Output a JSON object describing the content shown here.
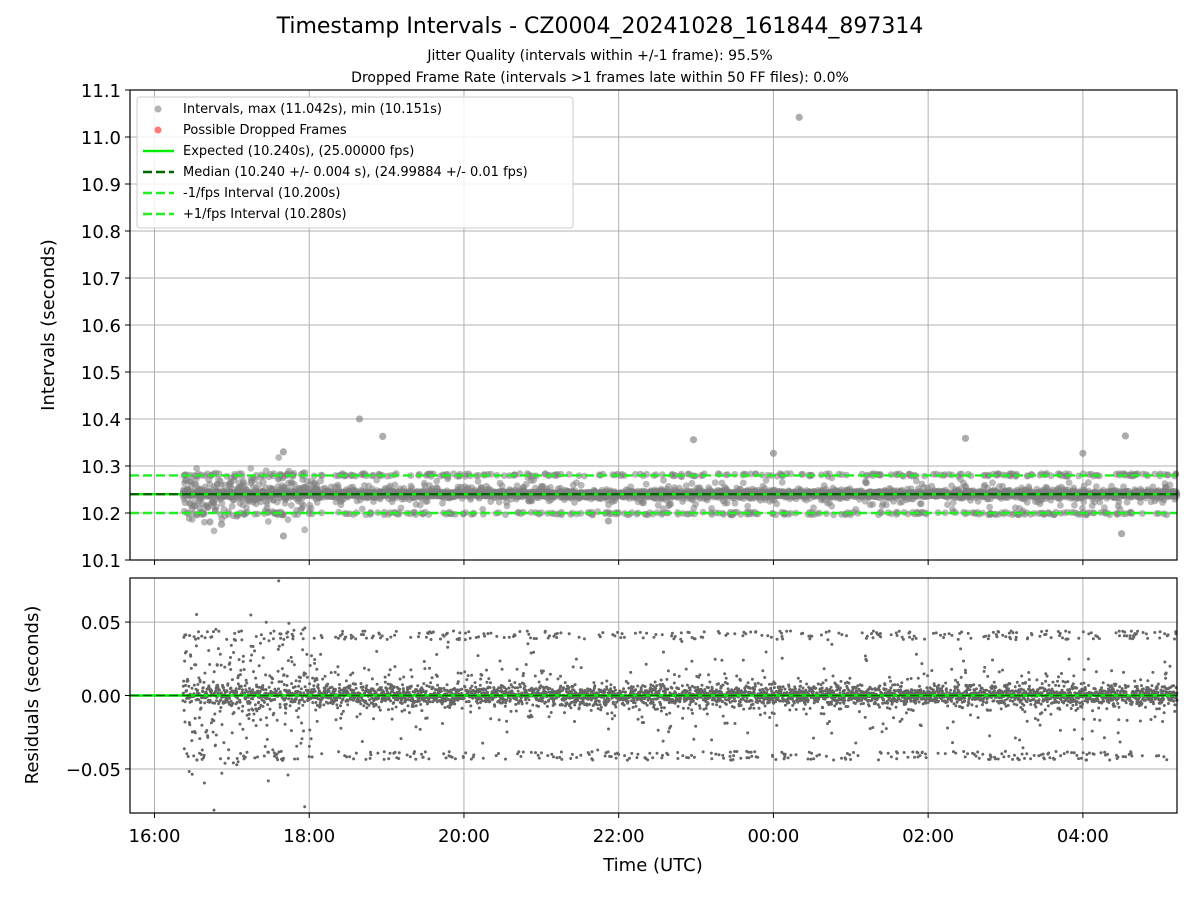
{
  "title": "Timestamp Intervals - CZ0004_20241028_161844_897314",
  "subtitle_jitter": "Jitter Quality (intervals within +/-1 frame): 95.5%",
  "subtitle_dropped": "Dropped Frame Rate (intervals >1 frames late within 50 FF files): 0.0%",
  "colors": {
    "points": "#808080",
    "dropped": "#ff4040",
    "expected": "#00ee00",
    "median": "#006400",
    "fps_bounds": "#22ee22",
    "grid": "#b0b0b0"
  },
  "chart_data": [
    {
      "type": "scatter",
      "panel": "top",
      "xlabel": "",
      "ylabel": "Intervals (seconds)",
      "xlim": [
        "15:41",
        "05:13"
      ],
      "ylim": [
        10.1,
        11.1
      ],
      "y_ticks": [
        "10.1",
        "10.2",
        "10.3",
        "10.4",
        "10.5",
        "10.6",
        "10.7",
        "10.8",
        "10.9",
        "11.0",
        "11.1"
      ],
      "x_ticks": [
        "16:00",
        "18:00",
        "20:00",
        "22:00",
        "00:00",
        "02:00",
        "04:00"
      ],
      "grid": true,
      "legend_position": "top-left",
      "series": [
        {
          "name": "Intervals, max (11.042s), min (10.151s)",
          "kind": "scatter",
          "color": "#808080"
        },
        {
          "name": "Possible Dropped Frames",
          "kind": "scatter",
          "color": "#ff4040",
          "count": 0
        },
        {
          "name": "Expected (10.240s), (25.00000 fps)",
          "kind": "hline",
          "y": 10.24,
          "style": "solid",
          "color": "#00ee00"
        },
        {
          "name": "Median (10.240 +/- 0.004 s), (24.99884 +/- 0.01 fps)",
          "kind": "hline",
          "y": 10.24,
          "style": "dashed",
          "color": "#006400"
        },
        {
          "name": "-1/fps Interval (10.200s)",
          "kind": "hline",
          "y": 10.2,
          "style": "dashed",
          "color": "#22ee22"
        },
        {
          "name": "+1/fps Interval (10.280s)",
          "kind": "hline",
          "y": 10.28,
          "style": "dashed",
          "color": "#22ee22"
        }
      ],
      "data_range": {
        "start": "16:22",
        "end": "05:13",
        "count": 4700
      },
      "outliers": [
        {
          "time": "00:20",
          "value": 11.042
        },
        {
          "time": "18:39",
          "value": 10.4
        },
        {
          "time": "18:57",
          "value": 10.363
        },
        {
          "time": "04:33",
          "value": 10.364
        },
        {
          "time": "02:29",
          "value": 10.359
        },
        {
          "time": "22:58",
          "value": 10.356
        },
        {
          "time": "17:40",
          "value": 10.33
        },
        {
          "time": "00:00",
          "value": 10.327
        },
        {
          "time": "04:00",
          "value": 10.327
        },
        {
          "time": "17:40",
          "value": 10.151
        },
        {
          "time": "04:30",
          "value": 10.156
        },
        {
          "time": "16:52",
          "value": 10.176
        },
        {
          "time": "16:43",
          "value": 10.181
        },
        {
          "time": "21:52",
          "value": 10.183
        }
      ]
    },
    {
      "type": "scatter",
      "panel": "bottom",
      "xlabel": "Time (UTC)",
      "ylabel": "Residuals (seconds)",
      "xlim": [
        "15:41",
        "05:13"
      ],
      "ylim": [
        -0.08,
        0.08
      ],
      "y_ticks": [
        "−0.05",
        "0.00",
        "0.05"
      ],
      "x_ticks": [
        "16:00",
        "18:00",
        "20:00",
        "22:00",
        "00:00",
        "02:00",
        "04:00"
      ],
      "grid": true,
      "zero_line_color": "#00ee00"
    }
  ]
}
